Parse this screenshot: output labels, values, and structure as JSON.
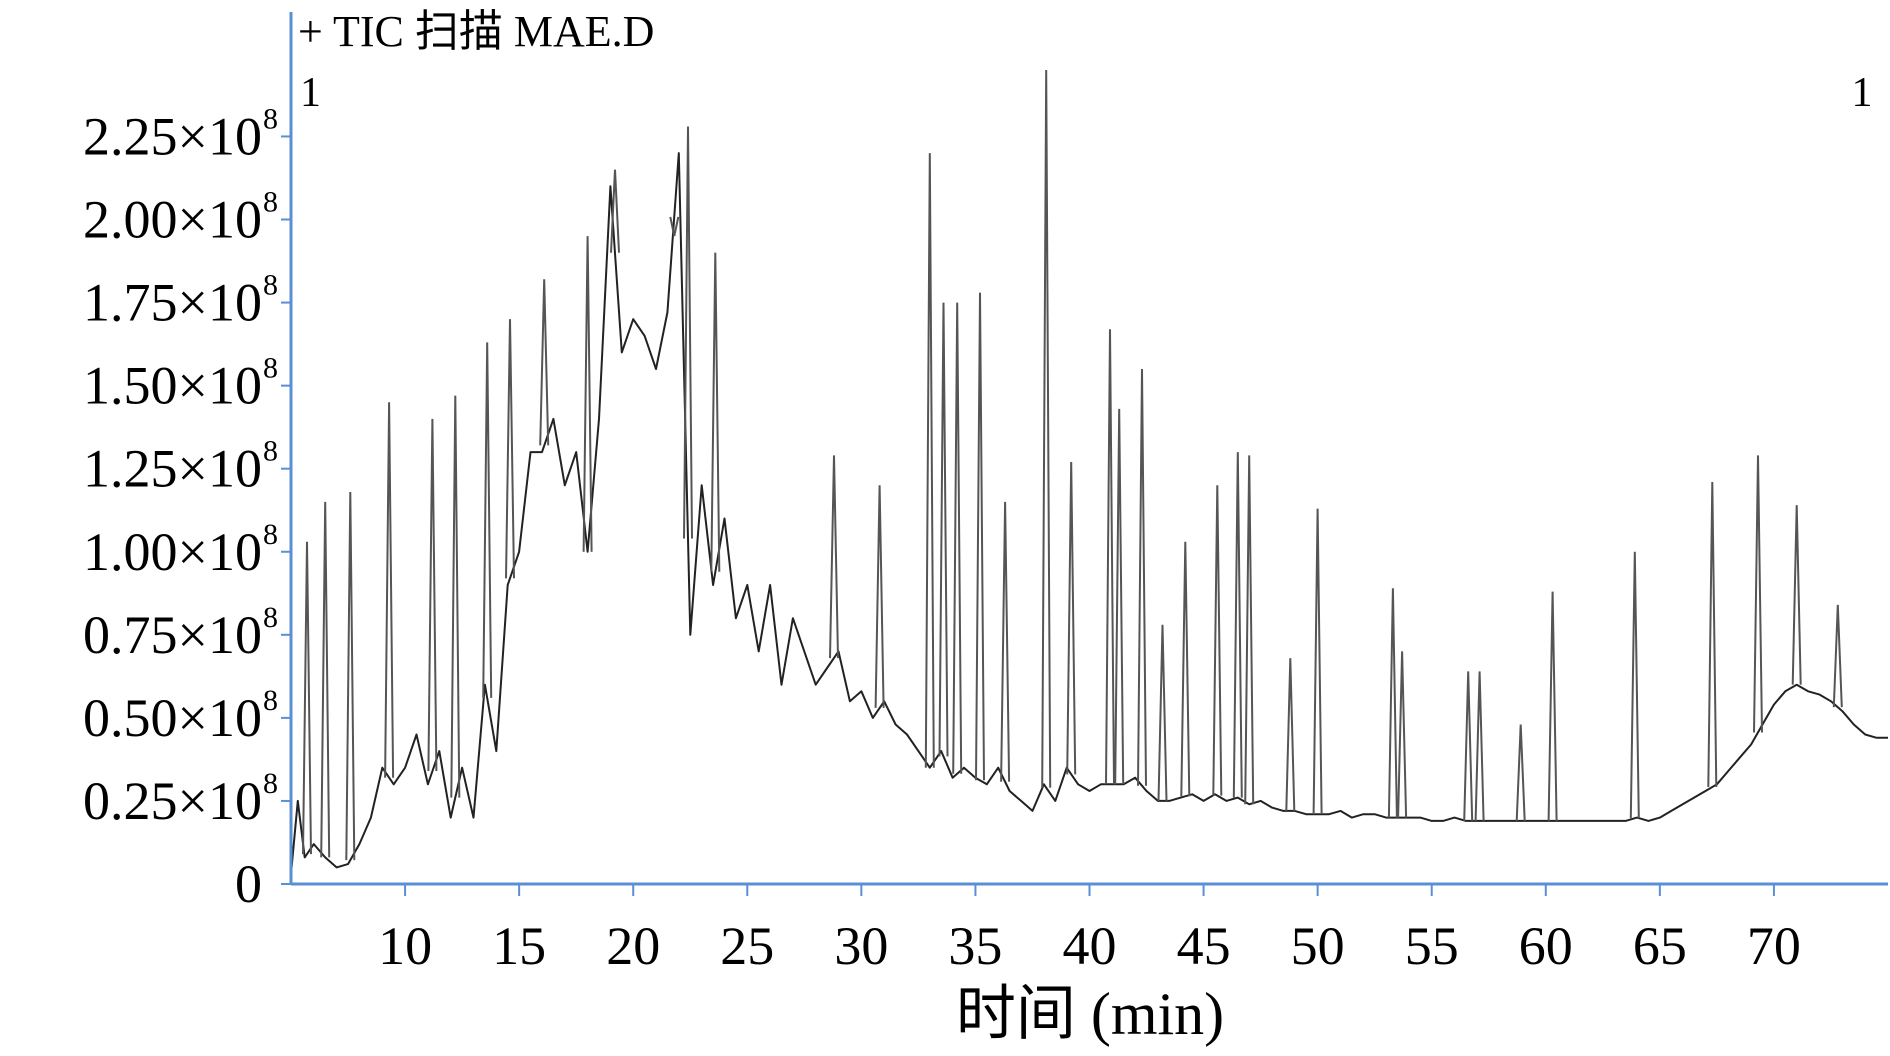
{
  "chart_data": {
    "type": "line",
    "header_text": "+ TIC 扫描 MAE.D",
    "marker_left": "1",
    "marker_right": "1",
    "xlabel": "时间 (min)",
    "ylabel": "",
    "xlim": [
      5,
      75
    ],
    "ylim": [
      0,
      245000000.0
    ],
    "x_ticks": [
      10,
      15,
      20,
      25,
      30,
      35,
      40,
      45,
      50,
      55,
      60,
      65,
      70
    ],
    "y_ticks": [
      {
        "value": 0,
        "label": "0"
      },
      {
        "value": 25000000,
        "label": "0.25×10",
        "exp": "8"
      },
      {
        "value": 50000000,
        "label": "0.50×10",
        "exp": "8"
      },
      {
        "value": 75000000,
        "label": "0.75×10",
        "exp": "8"
      },
      {
        "value": 100000000,
        "label": "1.00×10",
        "exp": "8"
      },
      {
        "value": 125000000,
        "label": "1.25×10",
        "exp": "8"
      },
      {
        "value": 150000000,
        "label": "1.50×10",
        "exp": "8"
      },
      {
        "value": 175000000,
        "label": "1.75×10",
        "exp": "8"
      },
      {
        "value": 200000000,
        "label": "2.00×10",
        "exp": "8"
      },
      {
        "value": 225000000,
        "label": "2.25×10",
        "exp": "8"
      }
    ],
    "series": [
      {
        "color": "#222222",
        "x": [
          5.0,
          5.3,
          5.6,
          6.0,
          6.5,
          7.0,
          7.5,
          8.0,
          8.5,
          9.0,
          9.5,
          10.0,
          10.5,
          11.0,
          11.5,
          12.0,
          12.5,
          13.0,
          13.5,
          14.0,
          14.5,
          15.0,
          15.5,
          16.0,
          16.5,
          17.0,
          17.5,
          18.0,
          18.5,
          19.0,
          19.5,
          20.0,
          20.5,
          21.0,
          21.5,
          22.0,
          22.5,
          23.0,
          23.5,
          24.0,
          24.5,
          25.0,
          25.5,
          26.0,
          26.5,
          27.0,
          27.5,
          28.0,
          28.5,
          29.0,
          29.5,
          30.0,
          30.5,
          31.0,
          31.5,
          32.0,
          32.5,
          33.0,
          33.5,
          34.0,
          34.5,
          35.0,
          35.5,
          36.0,
          36.5,
          37.0,
          37.5,
          38.0,
          38.5,
          39.0,
          39.5,
          40.0,
          40.5,
          41.0,
          41.5,
          42.0,
          42.5,
          43.0,
          43.5,
          44.0,
          44.5,
          45.0,
          45.5,
          46.0,
          46.5,
          47.0,
          47.5,
          48.0,
          48.5,
          49.0,
          49.5,
          50.0,
          50.5,
          51.0,
          51.5,
          52.0,
          52.5,
          53.0,
          53.5,
          54.0,
          54.5,
          55.0,
          55.5,
          56.0,
          56.5,
          57.0,
          57.5,
          58.0,
          58.5,
          59.0,
          59.5,
          60.0,
          60.5,
          61.0,
          61.5,
          62.0,
          62.5,
          63.0,
          63.5,
          64.0,
          64.5,
          65.0,
          65.5,
          66.0,
          66.5,
          67.0,
          67.5,
          68.0,
          68.5,
          69.0,
          69.5,
          70.0,
          70.5,
          71.0,
          71.5,
          72.0,
          72.5,
          73.0,
          73.5,
          74.0,
          74.5,
          75.0
        ],
        "y": [
          3000000,
          25000000,
          8000000,
          12000000,
          8000000,
          5000000,
          6000000,
          12000000,
          20000000,
          35000000,
          30000000,
          35000000,
          45000000,
          30000000,
          40000000,
          20000000,
          35000000,
          20000000,
          60000000,
          40000000,
          90000000,
          100000000,
          130000000,
          130000000,
          140000000,
          120000000,
          130000000,
          100000000,
          140000000,
          210000000,
          160000000,
          170000000,
          165000000,
          155000000,
          172000000,
          220000000,
          75000000,
          120000000,
          90000000,
          110000000,
          80000000,
          90000000,
          70000000,
          90000000,
          60000000,
          80000000,
          70000000,
          60000000,
          65000000,
          70000000,
          55000000,
          58000000,
          50000000,
          55000000,
          48000000,
          45000000,
          40000000,
          35000000,
          40000000,
          32000000,
          35000000,
          32000000,
          30000000,
          35000000,
          28000000,
          25000000,
          22000000,
          30000000,
          25000000,
          35000000,
          30000000,
          28000000,
          30000000,
          30000000,
          30000000,
          32000000,
          28000000,
          25000000,
          25000000,
          26000000,
          27000000,
          25000000,
          27000000,
          25000000,
          26000000,
          24000000,
          25000000,
          23000000,
          22000000,
          22000000,
          21000000,
          21000000,
          21000000,
          22000000,
          20000000,
          21000000,
          21000000,
          20000000,
          20000000,
          20000000,
          20000000,
          19000000,
          19000000,
          20000000,
          19000000,
          19000000,
          19000000,
          19000000,
          19000000,
          19000000,
          19000000,
          19000000,
          19000000,
          19000000,
          19000000,
          19000000,
          19000000,
          19000000,
          19000000,
          20000000,
          19000000,
          20000000,
          22000000,
          24000000,
          26000000,
          28000000,
          30000000,
          34000000,
          38000000,
          42000000,
          48000000,
          54000000,
          58000000,
          60000000,
          58000000,
          57000000,
          55000000,
          52000000,
          48000000,
          45000000,
          44000000,
          44000000
        ]
      }
    ],
    "peaks": [
      {
        "x": 5.7,
        "y": 103000000
      },
      {
        "x": 6.5,
        "y": 115000000
      },
      {
        "x": 7.6,
        "y": 118000000
      },
      {
        "x": 9.3,
        "y": 145000000
      },
      {
        "x": 11.2,
        "y": 140000000
      },
      {
        "x": 12.2,
        "y": 147000000
      },
      {
        "x": 13.6,
        "y": 163000000
      },
      {
        "x": 14.6,
        "y": 170000000
      },
      {
        "x": 16.1,
        "y": 182000000
      },
      {
        "x": 18.0,
        "y": 195000000
      },
      {
        "x": 19.2,
        "y": 215000000
      },
      {
        "x": 21.8,
        "y": 195000000
      },
      {
        "x": 22.4,
        "y": 228000000
      },
      {
        "x": 23.6,
        "y": 190000000
      },
      {
        "x": 28.8,
        "y": 129000000
      },
      {
        "x": 30.8,
        "y": 120000000
      },
      {
        "x": 33.0,
        "y": 220000000
      },
      {
        "x": 33.6,
        "y": 175000000
      },
      {
        "x": 34.2,
        "y": 175000000
      },
      {
        "x": 35.2,
        "y": 178000000
      },
      {
        "x": 36.3,
        "y": 115000000
      },
      {
        "x": 38.1,
        "y": 245000000
      },
      {
        "x": 39.2,
        "y": 127000000
      },
      {
        "x": 40.9,
        "y": 167000000
      },
      {
        "x": 41.3,
        "y": 143000000
      },
      {
        "x": 42.3,
        "y": 155000000
      },
      {
        "x": 43.2,
        "y": 78000000
      },
      {
        "x": 44.2,
        "y": 103000000
      },
      {
        "x": 45.6,
        "y": 120000000
      },
      {
        "x": 46.5,
        "y": 130000000
      },
      {
        "x": 47.0,
        "y": 129000000
      },
      {
        "x": 48.8,
        "y": 68000000
      },
      {
        "x": 50.0,
        "y": 113000000
      },
      {
        "x": 53.3,
        "y": 89000000
      },
      {
        "x": 53.7,
        "y": 70000000
      },
      {
        "x": 56.6,
        "y": 64000000
      },
      {
        "x": 57.1,
        "y": 64000000
      },
      {
        "x": 58.9,
        "y": 48000000
      },
      {
        "x": 60.3,
        "y": 88000000
      },
      {
        "x": 63.9,
        "y": 100000000
      },
      {
        "x": 67.3,
        "y": 121000000
      },
      {
        "x": 69.3,
        "y": 129000000
      },
      {
        "x": 71.0,
        "y": 114000000
      },
      {
        "x": 72.8,
        "y": 84000000
      }
    ],
    "grid": false,
    "legend": "none"
  }
}
